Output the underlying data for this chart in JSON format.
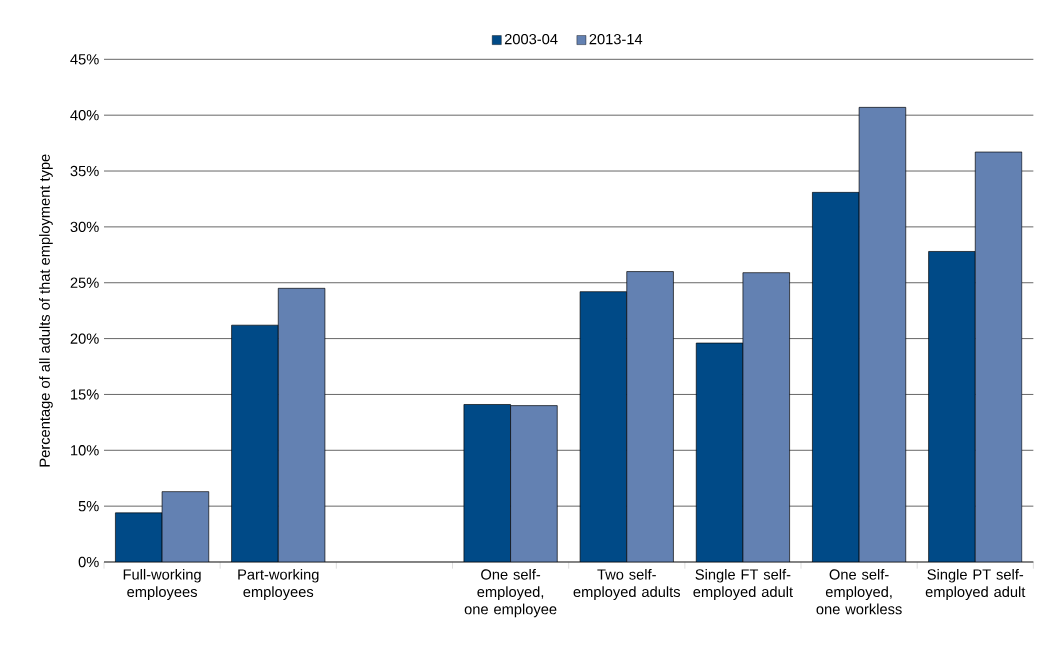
{
  "chart_data": {
    "type": "bar",
    "categories": [
      "Full-working employees",
      "Part-working employees",
      null,
      "One self-employed, one employee",
      "Two self-employed adults",
      "Single FT self-employed adult",
      "One self-employed, one workless",
      "Single PT self-employed adult"
    ],
    "series": [
      {
        "name": "2003-04",
        "color": "#004a87",
        "values": [
          4.4,
          21.2,
          null,
          14.1,
          24.2,
          19.6,
          33.1,
          27.8
        ]
      },
      {
        "name": "2013-14",
        "color": "#6381b2",
        "values": [
          6.3,
          24.5,
          null,
          14.0,
          26.0,
          25.9,
          40.7,
          36.7
        ]
      }
    ],
    "ylabel": "Percentage of all adults of that employment type",
    "ylim": [
      0,
      45
    ],
    "yticks": [
      {
        "value": 0,
        "label": "0%"
      },
      {
        "value": 5,
        "label": "5%"
      },
      {
        "value": 10,
        "label": "10%"
      },
      {
        "value": 15,
        "label": "15%"
      },
      {
        "value": 20,
        "label": "20%"
      },
      {
        "value": 25,
        "label": "25%"
      },
      {
        "value": 30,
        "label": "30%"
      },
      {
        "value": 35,
        "label": "35%"
      },
      {
        "value": 40,
        "label": "40%"
      },
      {
        "value": 45,
        "label": "45%"
      }
    ],
    "grid": "y",
    "legend": "top"
  }
}
